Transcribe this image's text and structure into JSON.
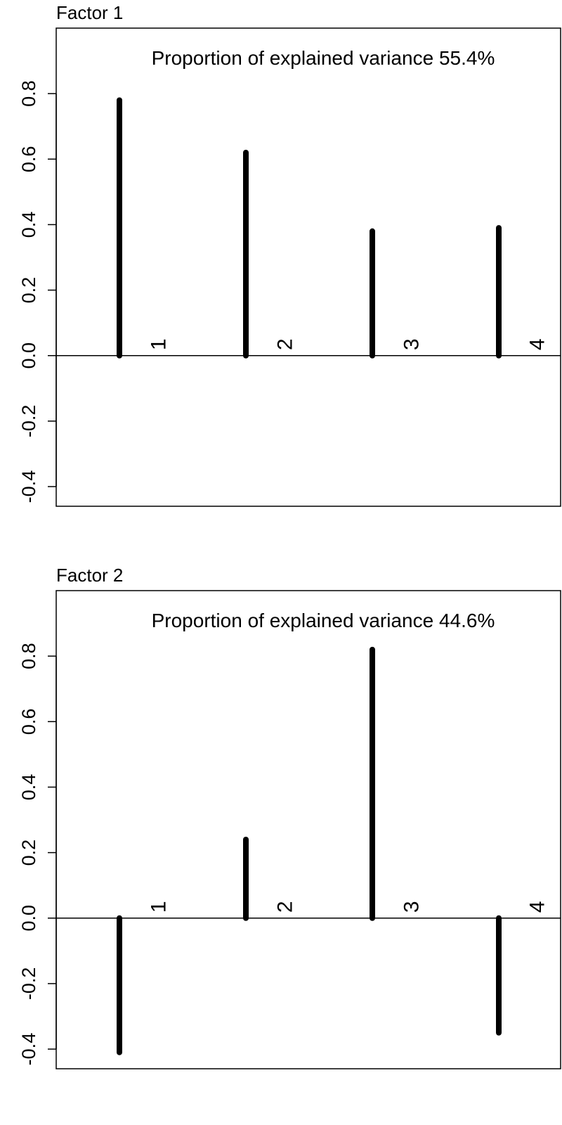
{
  "chart_data": [
    {
      "type": "bar",
      "title": "Factor 1",
      "annotation": "Proportion of explained variance 55.4%",
      "categories": [
        "1",
        "2",
        "3",
        "4"
      ],
      "values": [
        0.78,
        0.62,
        0.38,
        0.39
      ],
      "ylim": [
        -0.46,
        1.0
      ],
      "yticks": [
        -0.4,
        -0.2,
        0.0,
        0.2,
        0.4,
        0.6,
        0.8
      ],
      "ytick_labels": [
        "-0.4",
        "-0.2",
        "0.0",
        "0.2",
        "0.4",
        "0.6",
        "0.8"
      ],
      "xlabel": "",
      "ylabel": "",
      "grid": false
    },
    {
      "type": "bar",
      "title": "Factor 2",
      "annotation": "Proportion of explained variance 44.6%",
      "categories": [
        "1",
        "2",
        "3",
        "4"
      ],
      "values": [
        -0.41,
        0.24,
        0.82,
        -0.35
      ],
      "ylim": [
        -0.46,
        1.0
      ],
      "yticks": [
        -0.4,
        -0.2,
        0.0,
        0.2,
        0.4,
        0.6,
        0.8
      ],
      "ytick_labels": [
        "-0.4",
        "-0.2",
        "0.0",
        "0.2",
        "0.4",
        "0.6",
        "0.8"
      ],
      "xlabel": "",
      "ylabel": "",
      "grid": false
    }
  ]
}
